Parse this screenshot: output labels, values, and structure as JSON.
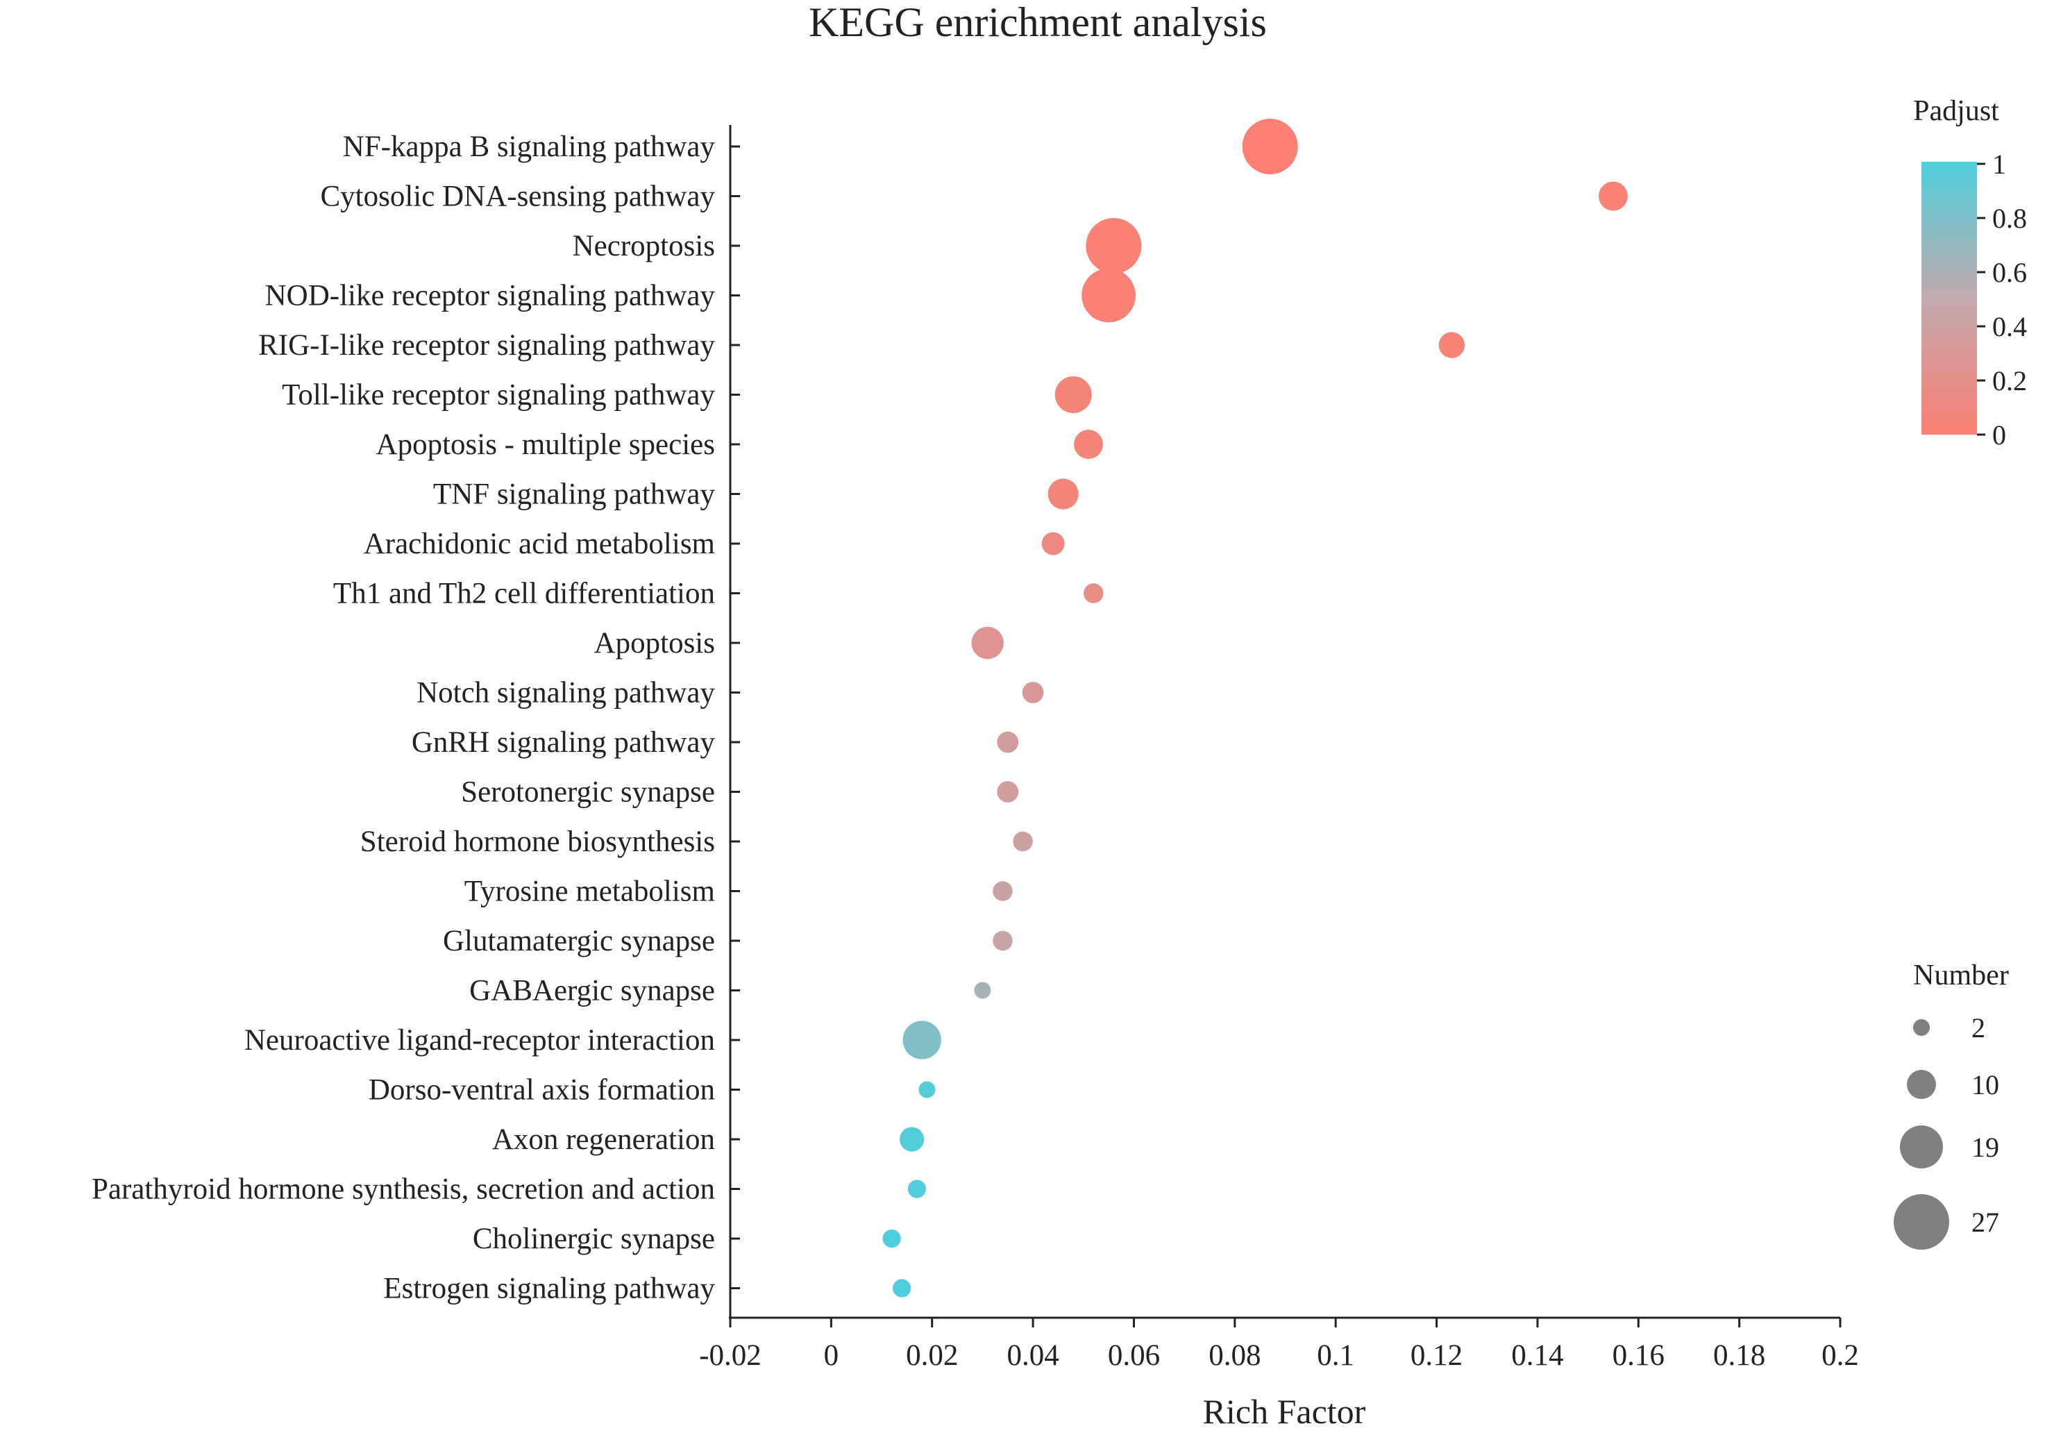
{
  "chart_data": {
    "type": "bubble",
    "title": "KEGG enrichment analysis",
    "xlabel": "Rich Factor",
    "ylabel": "",
    "xlim": [
      -0.02,
      0.2
    ],
    "xticks": [
      -0.02,
      0,
      0.02,
      0.04,
      0.06,
      0.08,
      0.1,
      0.12,
      0.14,
      0.16,
      0.18,
      0.2
    ],
    "xtick_labels": [
      "-0.02",
      "0",
      "0.02",
      "0.04",
      "0.06",
      "0.08",
      "0.1",
      "0.12",
      "0.14",
      "0.16",
      "0.18",
      "0.2"
    ],
    "points": [
      {
        "pathway": "NF-kappa B signaling pathway",
        "rich_factor": 0.087,
        "number": 27,
        "padjust": 0.0
      },
      {
        "pathway": "Cytosolic DNA-sensing pathway",
        "rich_factor": 0.155,
        "number": 10,
        "padjust": 0.02
      },
      {
        "pathway": "Necroptosis",
        "rich_factor": 0.056,
        "number": 27,
        "padjust": 0.02
      },
      {
        "pathway": "NOD-like receptor signaling pathway",
        "rich_factor": 0.055,
        "number": 26,
        "padjust": 0.02
      },
      {
        "pathway": "RIG-I-like receptor signaling pathway",
        "rich_factor": 0.123,
        "number": 8,
        "padjust": 0.03
      },
      {
        "pathway": "Toll-like receptor signaling pathway",
        "rich_factor": 0.048,
        "number": 15,
        "padjust": 0.05
      },
      {
        "pathway": "Apoptosis - multiple species",
        "rich_factor": 0.051,
        "number": 10,
        "padjust": 0.06
      },
      {
        "pathway": "TNF signaling pathway",
        "rich_factor": 0.046,
        "number": 11,
        "padjust": 0.07
      },
      {
        "pathway": "Arachidonic acid metabolism",
        "rich_factor": 0.044,
        "number": 6,
        "padjust": 0.12
      },
      {
        "pathway": "Th1 and Th2 cell differentiation",
        "rich_factor": 0.052,
        "number": 4,
        "padjust": 0.18
      },
      {
        "pathway": "Apoptosis",
        "rich_factor": 0.031,
        "number": 12,
        "padjust": 0.25
      },
      {
        "pathway": "Notch signaling pathway",
        "rich_factor": 0.04,
        "number": 5,
        "padjust": 0.3
      },
      {
        "pathway": "GnRH signaling pathway",
        "rich_factor": 0.035,
        "number": 5,
        "padjust": 0.35
      },
      {
        "pathway": "Serotonergic synapse",
        "rich_factor": 0.035,
        "number": 5,
        "padjust": 0.37
      },
      {
        "pathway": "Steroid hormone biosynthesis",
        "rich_factor": 0.038,
        "number": 4,
        "padjust": 0.4
      },
      {
        "pathway": "Tyrosine metabolism",
        "rich_factor": 0.034,
        "number": 4,
        "padjust": 0.42
      },
      {
        "pathway": "Glutamatergic synapse",
        "rich_factor": 0.034,
        "number": 4,
        "padjust": 0.44
      },
      {
        "pathway": "GABAergic synapse",
        "rich_factor": 0.03,
        "number": 2,
        "padjust": 0.62
      },
      {
        "pathway": "Neuroactive ligand-receptor interaction",
        "rich_factor": 0.018,
        "number": 16,
        "padjust": 0.78
      },
      {
        "pathway": "Dorso-ventral axis formation",
        "rich_factor": 0.019,
        "number": 2,
        "padjust": 0.98
      },
      {
        "pathway": "Axon regeneration",
        "rich_factor": 0.016,
        "number": 7,
        "padjust": 0.98
      },
      {
        "pathway": "Parathyroid hormone synthesis, secretion and action",
        "rich_factor": 0.017,
        "number": 3,
        "padjust": 0.99
      },
      {
        "pathway": "Cholinergic synapse",
        "rich_factor": 0.012,
        "number": 3,
        "padjust": 1.0
      },
      {
        "pathway": "Estrogen signaling pathway",
        "rich_factor": 0.014,
        "number": 3,
        "padjust": 1.0
      }
    ],
    "color_legend": {
      "title": "Padjust",
      "range": [
        0,
        1
      ],
      "low_color": "#fc7f73",
      "mid_color": "#c2a9ad",
      "high_color": "#4fcfdd",
      "ticks": [
        1,
        0.8,
        0.6,
        0.4,
        0.2,
        0
      ],
      "tick_labels": [
        "1",
        "0.8",
        "0.6",
        "0.4",
        "0.2",
        "0"
      ]
    },
    "size_legend": {
      "title": "Number",
      "values": [
        2,
        10,
        19,
        27
      ],
      "labels": [
        "2",
        "10",
        "19",
        "27"
      ],
      "color": "#808080"
    }
  }
}
